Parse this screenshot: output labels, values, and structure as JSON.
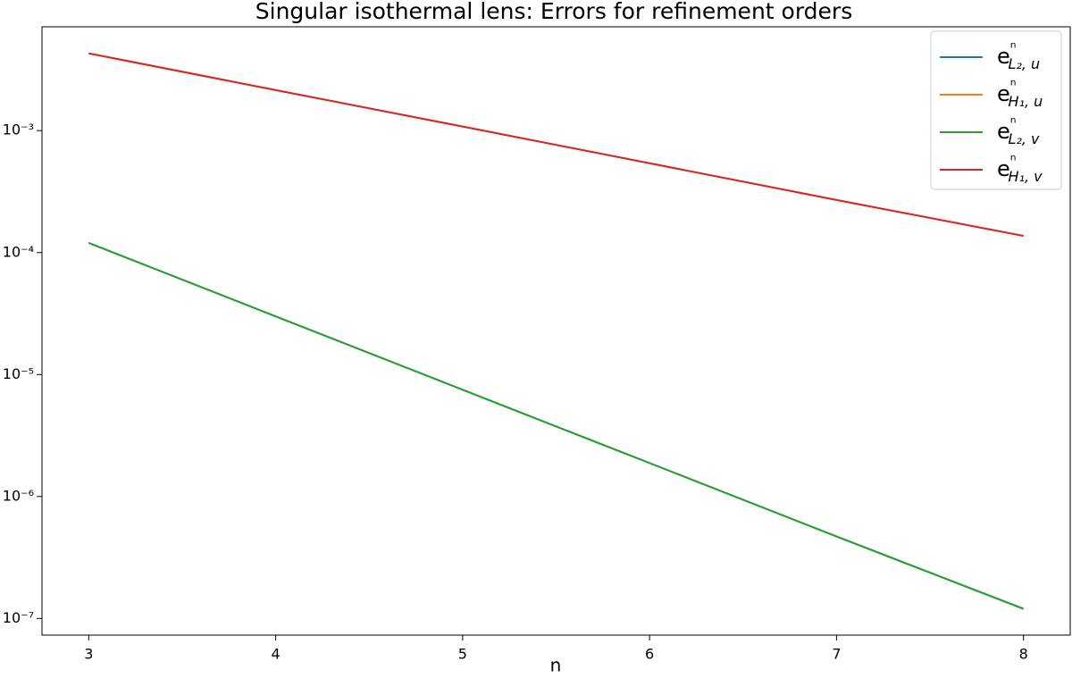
{
  "chart_data": {
    "type": "line",
    "title": "Singular isothermal lens: Errors for refinement orders",
    "x_label": "n",
    "x": [
      3,
      4,
      5,
      6,
      7,
      8
    ],
    "series": [
      {
        "name": "eⁿL₂, u",
        "color": "#1f77b4",
        "values": [
          0.00012,
          3e-05,
          7.5e-06,
          1.88e-06,
          4.7e-07,
          1.2e-07
        ]
      },
      {
        "name": "eⁿH₁, u",
        "color": "#ff7f0e",
        "values": [
          0.0043,
          0.00215,
          0.00108,
          0.00054,
          0.00027,
          0.000137
        ]
      },
      {
        "name": "eⁿL₂, v",
        "color": "#2ca02c",
        "values": [
          0.00012,
          3e-05,
          7.5e-06,
          1.88e-06,
          4.7e-07,
          1.2e-07
        ]
      },
      {
        "name": "eⁿH₁, v",
        "color": "#d62728",
        "values": [
          0.0043,
          0.00215,
          0.00108,
          0.00054,
          0.00027,
          0.000137
        ]
      }
    ],
    "xlim": [
      2.75,
      8.25
    ],
    "xticks": [
      3,
      4,
      5,
      6,
      7,
      8
    ],
    "ylim": [
      7.3e-08,
      0.0071
    ],
    "ylog": true,
    "yticks": [
      {
        "value": 1e-07,
        "label": "10⁻⁷"
      },
      {
        "value": 1e-06,
        "label": "10⁻⁶"
      },
      {
        "value": 1e-05,
        "label": "10⁻⁵"
      },
      {
        "value": 0.0001,
        "label": "10⁻⁴"
      },
      {
        "value": 0.001,
        "label": "10⁻³"
      }
    ],
    "legend": "upper right"
  }
}
